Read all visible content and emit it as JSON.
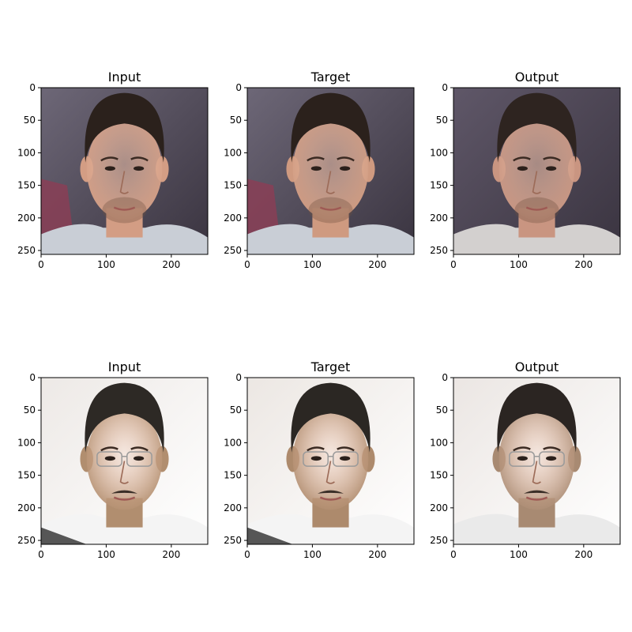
{
  "chart_data": [
    {
      "type": "image",
      "title": "Input",
      "image": "face-photo-man-short-dark-hair-stubble",
      "xticks": [
        0,
        100,
        200
      ],
      "yticks": [
        0,
        50,
        100,
        150,
        200,
        250
      ],
      "xlim": [
        0,
        256
      ],
      "ylim": [
        256,
        0
      ],
      "colors": {
        "bg": "#6d6777",
        "shirt": "#c9ced6",
        "skin": "#d39d84",
        "hair": "#2b211c"
      }
    },
    {
      "type": "image",
      "title": "Target",
      "image": "face-photo-man-short-dark-hair-stubble-target",
      "xticks": [
        0,
        100,
        200
      ],
      "yticks": [
        0,
        50,
        100,
        150,
        200,
        250
      ],
      "xlim": [
        0,
        256
      ],
      "ylim": [
        256,
        0
      ],
      "colors": {
        "bg": "#6d6777",
        "shirt": "#c9ced6",
        "skin": "#cf9a80",
        "hair": "#2b211c"
      }
    },
    {
      "type": "image",
      "title": "Output",
      "image": "generated-face-man-short-dark-hair",
      "xticks": [
        0,
        100,
        200
      ],
      "yticks": [
        0,
        50,
        100,
        150,
        200,
        250
      ],
      "xlim": [
        0,
        256
      ],
      "ylim": [
        256,
        0
      ],
      "colors": {
        "bg": "#5f5768",
        "shirt": "#d3d0cf",
        "skin": "#c99581",
        "hair": "#2e2420"
      }
    },
    {
      "type": "image",
      "title": "Input",
      "image": "face-photo-man-glasses-mustache",
      "xticks": [
        0,
        100,
        200
      ],
      "yticks": [
        0,
        50,
        100,
        150,
        200,
        250
      ],
      "xlim": [
        0,
        256
      ],
      "ylim": [
        256,
        0
      ],
      "colors": {
        "bg": "#ede9e6",
        "shirt": "#f4f4f4",
        "skin": "#b18e6f",
        "hair": "#2d2925"
      }
    },
    {
      "type": "image",
      "title": "Target",
      "image": "face-photo-man-glasses-mustache-target",
      "xticks": [
        0,
        100,
        200
      ],
      "yticks": [
        0,
        50,
        100,
        150,
        200,
        250
      ],
      "xlim": [
        0,
        256
      ],
      "ylim": [
        256,
        0
      ],
      "colors": {
        "bg": "#ece7e3",
        "shirt": "#f4f4f4",
        "skin": "#ad8a6c",
        "hair": "#2b2723"
      }
    },
    {
      "type": "image",
      "title": "Output",
      "image": "generated-face-man-glasses-mustache",
      "xticks": [
        0,
        100,
        200
      ],
      "yticks": [
        0,
        50,
        100,
        150,
        200,
        250
      ],
      "xlim": [
        0,
        256
      ],
      "ylim": [
        256,
        0
      ],
      "colors": {
        "bg": "#ebe6e3",
        "shirt": "#eaeaea",
        "skin": "#a88a72",
        "hair": "#2b2522"
      }
    }
  ]
}
